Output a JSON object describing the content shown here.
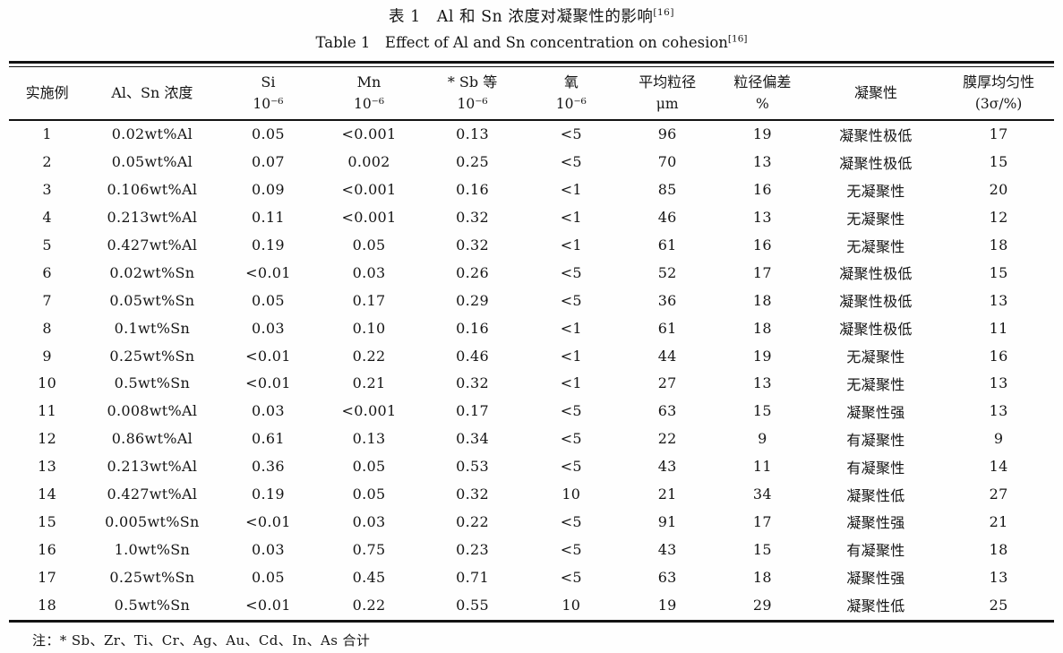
{
  "page": {
    "title_cn": "表 1　Al 和 Sn 浓度对凝聚性的影响",
    "title_cn_sup": "[16]",
    "title_en": "Table 1　Effect of Al and Sn concentration on cohesion",
    "title_en_sup": "[16]",
    "footnote": "注：* Sb、Zr、Ti、Cr、Ag、Au、Cd、In、As 合计"
  },
  "chart_data": {
    "type": "table",
    "title": "表 1　Al 和 Sn 浓度对凝聚性的影响 / Table 1 Effect of Al and Sn concentration on cohesion",
    "columns": [
      {
        "line1": "实施例",
        "line2": ""
      },
      {
        "line1": "Al、Sn 浓度",
        "line2": ""
      },
      {
        "line1": "Si",
        "line2": "10⁻⁶"
      },
      {
        "line1": "Mn",
        "line2": "10⁻⁶"
      },
      {
        "line1": "* Sb 等",
        "line2": "10⁻⁶"
      },
      {
        "line1": "氧",
        "line2": "10⁻⁶"
      },
      {
        "line1": "平均粒径",
        "line2": "μm"
      },
      {
        "line1": "粒径偏差",
        "line2": "%"
      },
      {
        "line1": "凝聚性",
        "line2": ""
      },
      {
        "line1": "膜厚均匀性",
        "line2": "(3σ/%)"
      }
    ],
    "rows": [
      [
        "1",
        "0.02wt%Al",
        "0.05",
        "<0.001",
        "0.13",
        "<5",
        "96",
        "19",
        "凝聚性极低",
        "17"
      ],
      [
        "2",
        "0.05wt%Al",
        "0.07",
        "0.002",
        "0.25",
        "<5",
        "70",
        "13",
        "凝聚性极低",
        "15"
      ],
      [
        "3",
        "0.106wt%Al",
        "0.09",
        "<0.001",
        "0.16",
        "<1",
        "85",
        "16",
        "无凝聚性",
        "20"
      ],
      [
        "4",
        "0.213wt%Al",
        "0.11",
        "<0.001",
        "0.32",
        "<1",
        "46",
        "13",
        "无凝聚性",
        "12"
      ],
      [
        "5",
        "0.427wt%Al",
        "0.19",
        "0.05",
        "0.32",
        "<1",
        "61",
        "16",
        "无凝聚性",
        "18"
      ],
      [
        "6",
        "0.02wt%Sn",
        "<0.01",
        "0.03",
        "0.26",
        "<5",
        "52",
        "17",
        "凝聚性极低",
        "15"
      ],
      [
        "7",
        "0.05wt%Sn",
        "0.05",
        "0.17",
        "0.29",
        "<5",
        "36",
        "18",
        "凝聚性极低",
        "13"
      ],
      [
        "8",
        "0.1wt%Sn",
        "0.03",
        "0.10",
        "0.16",
        "<1",
        "61",
        "18",
        "凝聚性极低",
        "11"
      ],
      [
        "9",
        "0.25wt%Sn",
        "<0.01",
        "0.22",
        "0.46",
        "<1",
        "44",
        "19",
        "无凝聚性",
        "16"
      ],
      [
        "10",
        "0.5wt%Sn",
        "<0.01",
        "0.21",
        "0.32",
        "<1",
        "27",
        "13",
        "无凝聚性",
        "13"
      ],
      [
        "11",
        "0.008wt%Al",
        "0.03",
        "<0.001",
        "0.17",
        "<5",
        "63",
        "15",
        "凝聚性强",
        "13"
      ],
      [
        "12",
        "0.86wt%Al",
        "0.61",
        "0.13",
        "0.34",
        "<5",
        "22",
        "9",
        "有凝聚性",
        "9"
      ],
      [
        "13",
        "0.213wt%Al",
        "0.36",
        "0.05",
        "0.53",
        "<5",
        "43",
        "11",
        "有凝聚性",
        "14"
      ],
      [
        "14",
        "0.427wt%Al",
        "0.19",
        "0.05",
        "0.32",
        "10",
        "21",
        "34",
        "凝聚性低",
        "27"
      ],
      [
        "15",
        "0.005wt%Sn",
        "<0.01",
        "0.03",
        "0.22",
        "<5",
        "91",
        "17",
        "凝聚性强",
        "21"
      ],
      [
        "16",
        "1.0wt%Sn",
        "0.03",
        "0.75",
        "0.23",
        "<5",
        "43",
        "15",
        "有凝聚性",
        "18"
      ],
      [
        "17",
        "0.25wt%Sn",
        "0.05",
        "0.45",
        "0.71",
        "<5",
        "63",
        "18",
        "凝聚性强",
        "13"
      ],
      [
        "18",
        "0.5wt%Sn",
        "<0.01",
        "0.22",
        "0.55",
        "10",
        "19",
        "29",
        "凝聚性低",
        "25"
      ]
    ]
  }
}
